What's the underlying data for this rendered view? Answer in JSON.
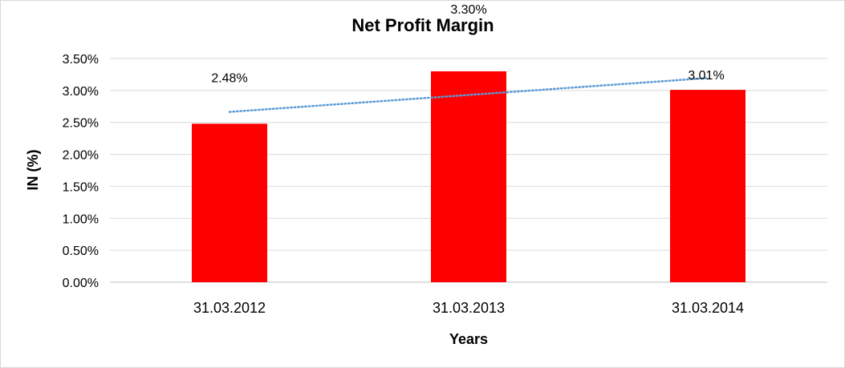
{
  "chart_data": {
    "type": "bar",
    "title": "Net Profit Margin",
    "xlabel": "Years",
    "ylabel": "IN (%)",
    "categories": [
      "31.03.2012",
      "31.03.2013",
      "31.03.2014"
    ],
    "series": [
      {
        "values": [
          2.48,
          3.3,
          3.01
        ],
        "color": "#ff0000"
      }
    ],
    "data_labels": [
      "2.48%",
      "3.30%",
      "3.01%"
    ],
    "ylim": [
      0,
      3.5
    ],
    "y_ticks": [
      0,
      0.5,
      1.0,
      1.5,
      2.0,
      2.5,
      3.0,
      3.5
    ],
    "y_tick_labels": [
      "0.00%",
      "0.50%",
      "1.00%",
      "1.50%",
      "2.00%",
      "2.50%",
      "3.00%",
      "3.50%"
    ],
    "trendline": {
      "type": "linear",
      "style": "dotted",
      "color": "#5b9bd5"
    },
    "grid": true,
    "legend": "none"
  }
}
